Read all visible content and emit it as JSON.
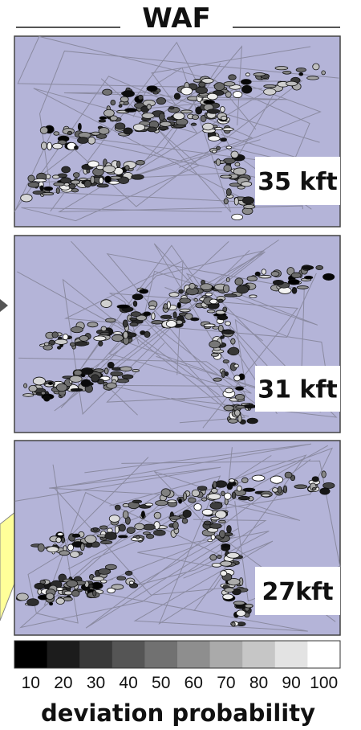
{
  "title": "WAF",
  "panels": [
    {
      "label": "35 kft"
    },
    {
      "label": "31 kft"
    },
    {
      "label": "27kft"
    }
  ],
  "colorbar": {
    "ticks": [
      10,
      20,
      30,
      40,
      50,
      60,
      70,
      80,
      90,
      100
    ],
    "label": "deviation probability"
  }
}
